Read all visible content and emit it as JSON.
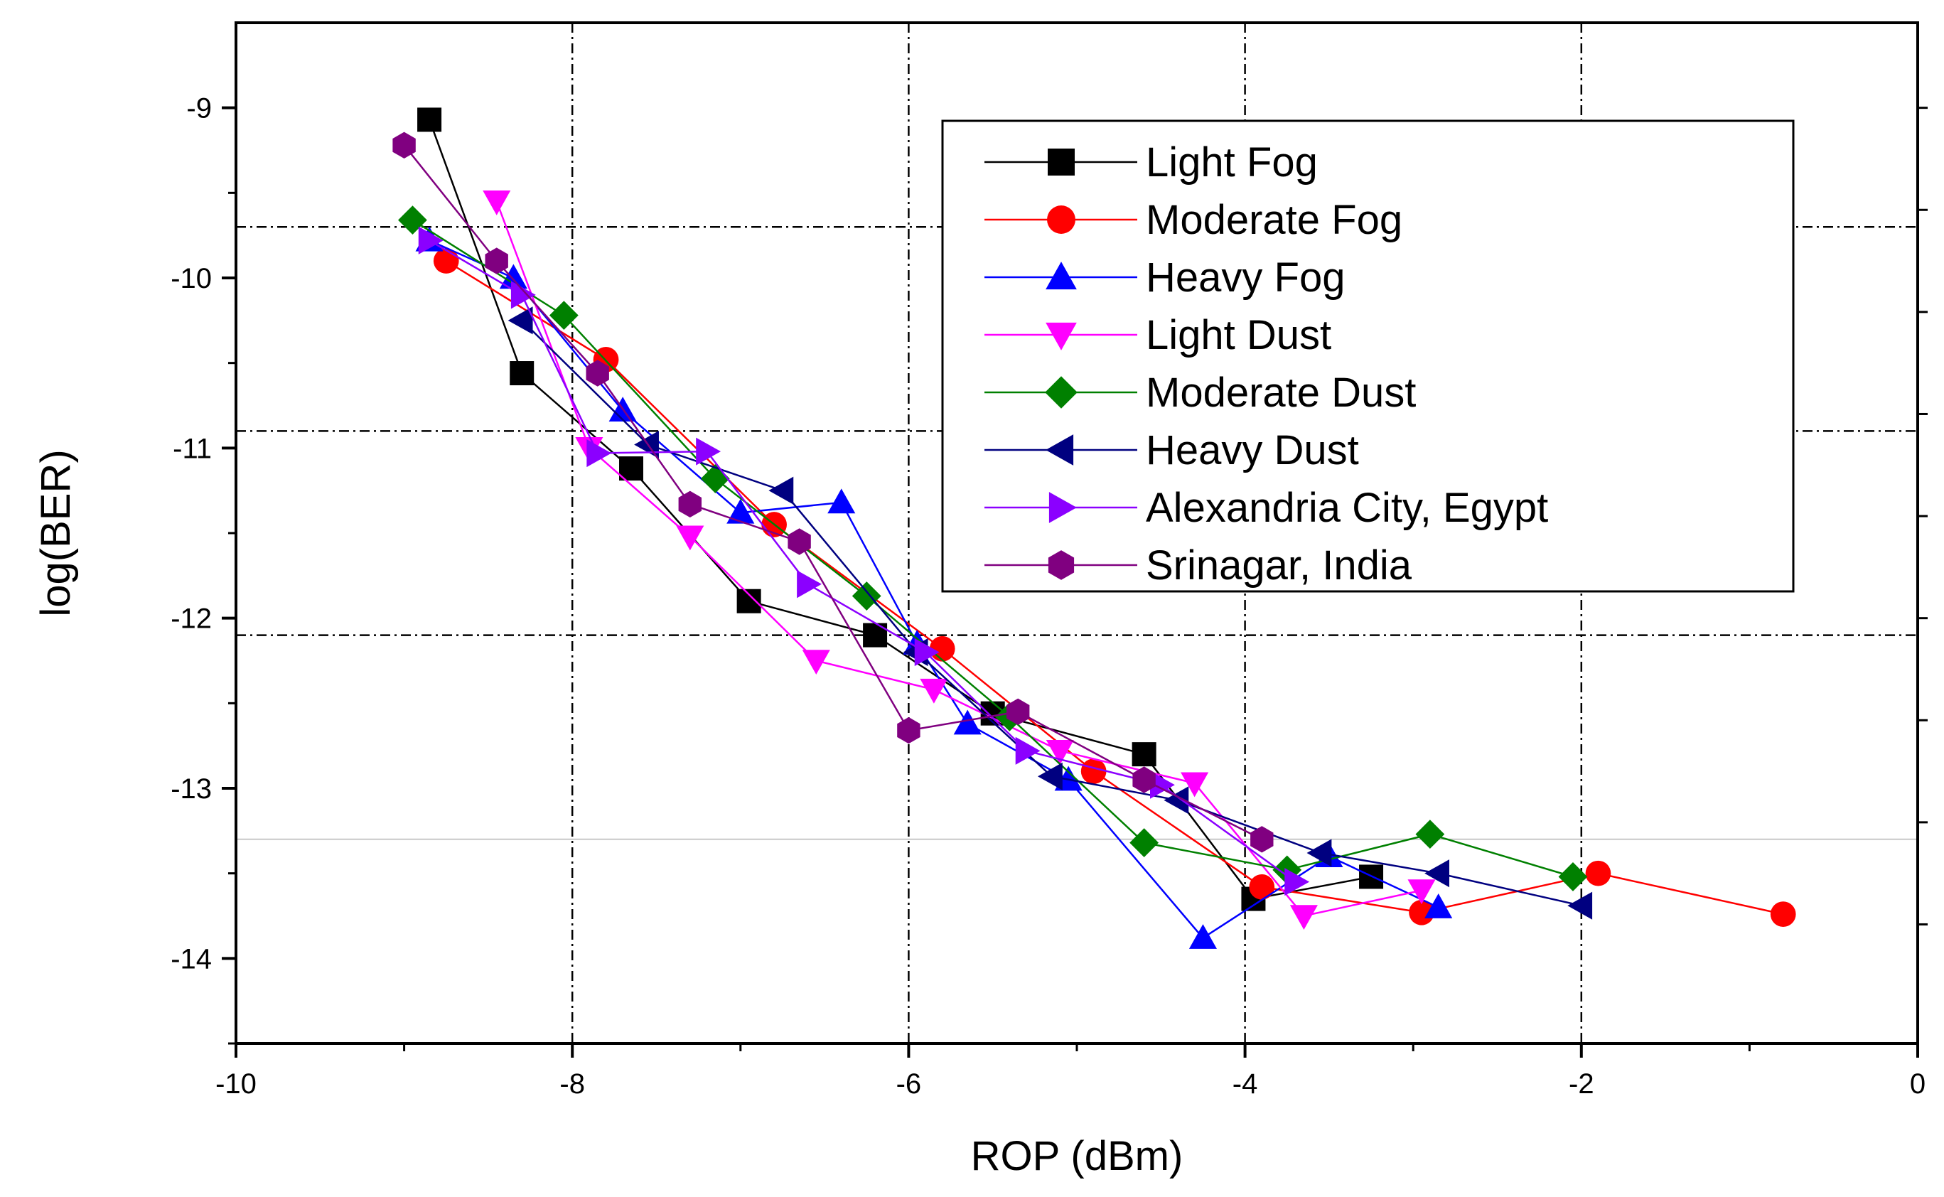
{
  "chart_data": {
    "type": "line",
    "title": "",
    "xlabel": "ROP (dBm)",
    "ylabel": "log(BER)",
    "xlim": [
      -10,
      0
    ],
    "ylim": [
      -14.5,
      -8.5
    ],
    "xticks": [
      -10,
      -8,
      -6,
      -4,
      -2,
      0
    ],
    "yticks": [
      -9,
      -10,
      -11,
      -12,
      -13,
      -14
    ],
    "xtick_labels": [
      "-10",
      "-8",
      "-6",
      "-4",
      "-2",
      "0"
    ],
    "ytick_labels": [
      "-9",
      "-10",
      "-11",
      "-12",
      "-13",
      "-14"
    ],
    "grid": true,
    "legend_position": "top-right",
    "series": [
      {
        "name": "Light Fog",
        "color": "#000000",
        "marker": "square",
        "x": [
          -8.85,
          -8.3,
          -7.65,
          -6.95,
          -6.2,
          -5.5,
          -4.6,
          -3.95,
          -3.25
        ],
        "y": [
          -9.07,
          -10.56,
          -11.12,
          -11.9,
          -12.1,
          -12.56,
          -12.8,
          -13.65,
          -13.52
        ]
      },
      {
        "name": "Moderate Fog",
        "color": "#ff0000",
        "marker": "circle",
        "x": [
          -8.75,
          -7.8,
          -6.8,
          -5.8,
          -4.9,
          -3.9,
          -2.95,
          -1.9,
          -0.8
        ],
        "y": [
          -9.9,
          -10.48,
          -11.45,
          -12.18,
          -12.9,
          -13.58,
          -13.73,
          -13.5,
          -13.74
        ]
      },
      {
        "name": "Heavy Fog",
        "color": "#0000ff",
        "marker": "triangle-up",
        "x": [
          -8.85,
          -8.35,
          -7.7,
          -7.0,
          -6.4,
          -5.95,
          -5.65,
          -5.05,
          -4.25,
          -3.5,
          -2.85
        ],
        "y": [
          -9.78,
          -10.0,
          -10.78,
          -11.38,
          -11.32,
          -12.15,
          -12.62,
          -12.95,
          -13.88,
          -13.4,
          -13.7
        ]
      },
      {
        "name": "Light Dust",
        "color": "#ff00ff",
        "marker": "triangle-down",
        "x": [
          -8.45,
          -7.9,
          -7.3,
          -6.55,
          -5.85,
          -5.1,
          -4.3,
          -3.65,
          -2.95
        ],
        "y": [
          -9.55,
          -11.0,
          -11.52,
          -12.25,
          -12.42,
          -12.78,
          -12.97,
          -13.75,
          -13.6
        ]
      },
      {
        "name": "Moderate Dust",
        "color": "#008000",
        "marker": "diamond",
        "x": [
          -8.95,
          -8.05,
          -7.15,
          -6.25,
          -5.4,
          -4.6,
          -3.75,
          -2.9,
          -2.05
        ],
        "y": [
          -9.66,
          -10.22,
          -11.18,
          -11.87,
          -12.58,
          -13.32,
          -13.48,
          -13.27,
          -13.52
        ]
      },
      {
        "name": "Heavy Dust",
        "color": "#000080",
        "marker": "triangle-left",
        "x": [
          -8.3,
          -7.55,
          -6.75,
          -5.95,
          -5.15,
          -4.4,
          -3.55,
          -2.85,
          -2.0
        ],
        "y": [
          -10.25,
          -10.98,
          -11.25,
          -12.2,
          -12.93,
          -13.07,
          -13.38,
          -13.5,
          -13.69
        ]
      },
      {
        "name": "Alexandria City, Egypt",
        "color": "#8b00ff",
        "marker": "triangle-right",
        "x": [
          -8.85,
          -8.3,
          -7.85,
          -7.2,
          -6.6,
          -5.9,
          -5.3,
          -4.5,
          -3.7
        ],
        "y": [
          -9.78,
          -10.1,
          -11.03,
          -11.02,
          -11.8,
          -12.2,
          -12.78,
          -12.98,
          -13.55
        ]
      },
      {
        "name": "Srinagar, India",
        "color": "#800080",
        "marker": "hexagon",
        "x": [
          -9.0,
          -8.45,
          -7.85,
          -7.3,
          -6.65,
          -6.0,
          -5.35,
          -4.6,
          -3.9
        ],
        "y": [
          -9.22,
          -9.9,
          -10.56,
          -11.33,
          -11.55,
          -12.66,
          -12.55,
          -12.95,
          -13.3
        ]
      }
    ]
  }
}
